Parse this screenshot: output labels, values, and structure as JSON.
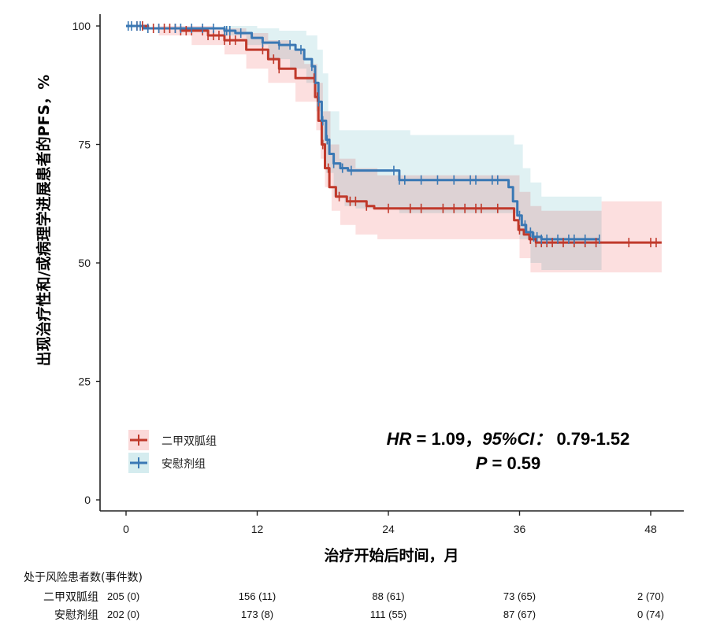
{
  "chart_data": {
    "type": "line",
    "subtype": "kaplan-meier",
    "title": "",
    "xlabel": "治疗开始后时间，月",
    "ylabel": "出现治疗性和/或病理学进展患者的PFS，%",
    "xlim": [
      -2.3,
      51
    ],
    "ylim": [
      0,
      102
    ],
    "xticks": [
      0,
      12,
      24,
      36,
      48
    ],
    "yticks": [
      0,
      25,
      50,
      75,
      100
    ],
    "grid": false,
    "legend": {
      "placement": "bottom-left"
    },
    "annotation": {
      "hr_label": "HR",
      "hr_eq": " = 1.09，",
      "ci_label": "95%CI：",
      "ci_value": " 0.79-1.52",
      "p_label": "P",
      "p_eq": " = 0.59"
    },
    "series": [
      {
        "name": "二甲双胍组",
        "color": "#c0392b",
        "band_color": "#fbd9d9",
        "steps": [
          [
            0,
            100
          ],
          [
            2,
            99.5
          ],
          [
            5,
            99
          ],
          [
            7.5,
            98
          ],
          [
            9,
            97
          ],
          [
            11,
            95
          ],
          [
            13,
            93
          ],
          [
            14,
            91
          ],
          [
            15.5,
            89
          ],
          [
            17.3,
            85
          ],
          [
            17.6,
            80
          ],
          [
            17.9,
            75
          ],
          [
            18.2,
            70
          ],
          [
            18.6,
            66
          ],
          [
            19.2,
            64
          ],
          [
            20.2,
            63
          ],
          [
            22,
            62
          ],
          [
            22.7,
            61.5
          ],
          [
            35,
            61.5
          ],
          [
            35.5,
            59
          ],
          [
            35.9,
            57
          ],
          [
            36.4,
            56
          ],
          [
            36.9,
            55
          ],
          [
            37.5,
            54.3
          ],
          [
            49,
            54.3
          ]
        ],
        "ci_upper": [
          [
            0,
            100
          ],
          [
            5,
            100
          ],
          [
            8,
            99.5
          ],
          [
            11,
            98.5
          ],
          [
            13,
            97
          ],
          [
            15,
            95
          ],
          [
            16.3,
            92
          ],
          [
            17.5,
            88
          ],
          [
            18,
            82
          ],
          [
            18.7,
            75
          ],
          [
            19.5,
            72
          ],
          [
            21,
            70
          ],
          [
            23,
            68.5
          ],
          [
            35,
            68.5
          ],
          [
            36,
            65
          ],
          [
            37,
            62
          ],
          [
            38,
            61
          ],
          [
            43.5,
            61
          ],
          [
            43.5,
            63
          ],
          [
            49,
            63
          ]
        ],
        "ci_lower": [
          [
            0,
            100
          ],
          [
            3,
            98
          ],
          [
            6,
            96
          ],
          [
            9,
            94
          ],
          [
            11,
            91
          ],
          [
            13,
            88
          ],
          [
            15.5,
            84
          ],
          [
            17.4,
            78
          ],
          [
            17.8,
            72
          ],
          [
            18.2,
            66
          ],
          [
            18.8,
            61
          ],
          [
            19.6,
            58
          ],
          [
            21,
            56
          ],
          [
            23,
            55
          ],
          [
            35,
            55
          ],
          [
            36,
            51
          ],
          [
            37,
            48
          ],
          [
            49,
            47
          ]
        ],
        "censor_times": [
          1,
          1.5,
          2,
          2.5,
          3,
          3.5,
          4,
          4.5,
          5,
          5.5,
          6,
          7,
          7.5,
          8,
          8.5,
          9,
          9.5,
          10,
          12.5,
          13.5,
          14,
          17.2,
          17.5,
          18,
          18.5,
          19.5,
          20.5,
          21,
          22,
          24,
          26,
          27,
          29,
          30,
          31,
          32,
          32.5,
          34,
          36,
          37,
          37.5,
          38,
          38.5,
          39,
          40,
          41,
          42,
          43,
          46,
          48,
          48.5
        ],
        "risk_table": [
          "205 (0)",
          "156 (11)",
          "88 (61)",
          "73 (65)",
          "2 (70)"
        ]
      },
      {
        "name": "安慰剂组",
        "color": "#3a78b4",
        "band_color": "#d5ecef",
        "steps": [
          [
            0,
            100
          ],
          [
            1.6,
            99.5
          ],
          [
            9,
            99
          ],
          [
            10,
            98.5
          ],
          [
            11.5,
            97.5
          ],
          [
            12.5,
            96.5
          ],
          [
            14,
            96
          ],
          [
            15.5,
            95
          ],
          [
            16.3,
            93
          ],
          [
            17,
            91.5
          ],
          [
            17.3,
            88
          ],
          [
            17.6,
            84
          ],
          [
            17.9,
            80
          ],
          [
            18.3,
            76
          ],
          [
            18.6,
            73
          ],
          [
            19,
            71
          ],
          [
            19.6,
            70
          ],
          [
            20.3,
            69.5
          ],
          [
            24.8,
            69.5
          ],
          [
            25,
            67.5
          ],
          [
            34.5,
            67.5
          ],
          [
            35,
            66
          ],
          [
            35.4,
            63
          ],
          [
            35.8,
            60
          ],
          [
            36.2,
            58
          ],
          [
            36.6,
            56.5
          ],
          [
            37.2,
            55.5
          ],
          [
            38,
            55
          ],
          [
            43.3,
            55
          ]
        ],
        "ci_upper": [
          [
            0,
            100
          ],
          [
            10,
            100
          ],
          [
            12,
            99.5
          ],
          [
            14,
            99
          ],
          [
            16.5,
            98
          ],
          [
            17.5,
            95
          ],
          [
            18,
            90
          ],
          [
            18.5,
            82
          ],
          [
            19.5,
            78
          ],
          [
            26,
            77
          ],
          [
            35.5,
            75
          ],
          [
            36.3,
            70
          ],
          [
            37,
            67
          ],
          [
            38,
            64
          ],
          [
            43.5,
            64
          ]
        ],
        "ci_lower": [
          [
            0,
            100
          ],
          [
            9,
            98
          ],
          [
            11,
            96
          ],
          [
            13,
            93
          ],
          [
            15,
            91
          ],
          [
            16.5,
            88
          ],
          [
            17.4,
            82
          ],
          [
            17.8,
            75
          ],
          [
            18.3,
            69
          ],
          [
            19,
            64
          ],
          [
            20,
            62
          ],
          [
            21,
            61.5
          ],
          [
            25,
            60.5
          ],
          [
            35,
            60.5
          ],
          [
            36,
            55
          ],
          [
            37,
            50
          ],
          [
            38,
            48.5
          ],
          [
            43.5,
            48.5
          ]
        ],
        "censor_times": [
          0.2,
          0.5,
          1,
          1.3,
          2,
          3,
          4.5,
          5,
          6,
          7,
          8,
          9,
          9.2,
          9.5,
          10.5,
          12.5,
          14,
          15,
          16,
          17,
          17.6,
          18,
          18.4,
          19,
          19.8,
          20.6,
          24.5,
          25,
          25.5,
          27,
          28.5,
          30,
          31.5,
          32,
          33.5,
          34,
          36,
          36.5,
          37,
          37.3,
          37.6,
          38,
          38.5,
          39.5,
          40.5,
          41,
          42,
          43.3
        ],
        "risk_table": [
          "202 (0)",
          "173 (8)",
          "111 (55)",
          "87 (67)",
          "0 (74)"
        ]
      }
    ],
    "risk_table_title": "处于风险患者数(事件数)"
  }
}
